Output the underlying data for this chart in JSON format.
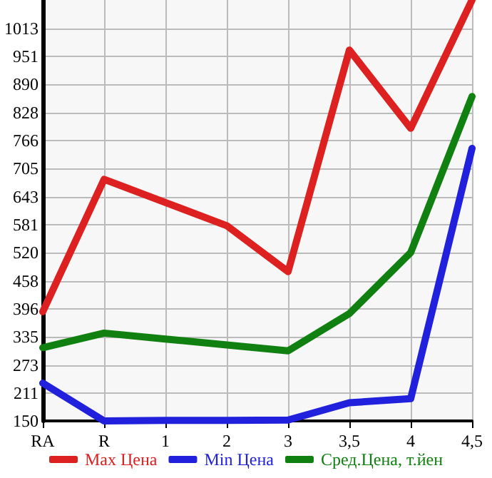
{
  "chart_data": {
    "type": "line",
    "categories": [
      "RA",
      "R",
      "1",
      "2",
      "3",
      "3,5",
      "4",
      "4,5"
    ],
    "series": [
      {
        "name": "Max Цена",
        "color": "#dd2020",
        "values": [
          390,
          681,
          630,
          579,
          478,
          965,
          793,
          1075
        ]
      },
      {
        "name": "Min Цена",
        "color": "#2020dd",
        "values": [
          233,
          150,
          151,
          151,
          152,
          190,
          199,
          749
        ]
      },
      {
        "name": "Сред.Цена, т.йен",
        "color": "#108010",
        "values": [
          311,
          343,
          330,
          317,
          304,
          386,
          520,
          863
        ]
      }
    ],
    "ylim": [
      150,
      1075
    ],
    "yticks": [
      150,
      211,
      273,
      335,
      396,
      458,
      520,
      581,
      643,
      705,
      766,
      828,
      890,
      951,
      1013
    ],
    "grid": true,
    "legend": "bottom",
    "marker": "none",
    "line_style": "solid"
  }
}
